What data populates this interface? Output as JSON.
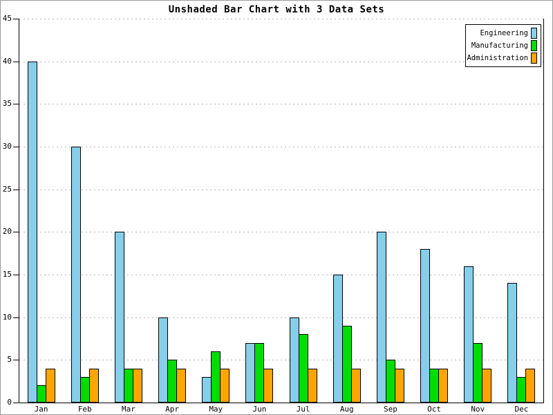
{
  "window": {
    "background": "#ffffff",
    "frame_border_color": "#9a9a9a"
  },
  "chart_data": {
    "type": "bar",
    "title": "Unshaded Bar Chart with 3 Data Sets",
    "categories": [
      "Jan",
      "Feb",
      "Mar",
      "Apr",
      "May",
      "Jun",
      "Jul",
      "Aug",
      "Sep",
      "Oct",
      "Nov",
      "Dec"
    ],
    "series": [
      {
        "name": "Engineering",
        "color": "#87CEEB",
        "values": [
          40,
          30,
          20,
          10,
          3,
          7,
          10,
          15,
          20,
          18,
          16,
          14
        ]
      },
      {
        "name": "Manufacturing",
        "color": "#00DD00",
        "values": [
          2,
          3,
          4,
          5,
          6,
          7,
          8,
          9,
          5,
          4,
          7,
          3
        ]
      },
      {
        "name": "Administration",
        "color": "#FFA500",
        "values": [
          4,
          4,
          4,
          4,
          4,
          4,
          4,
          4,
          4,
          4,
          4,
          4
        ]
      }
    ],
    "xlabel": "",
    "ylabel": "",
    "ylim": [
      0,
      45
    ],
    "yticks": [
      0,
      5,
      10,
      15,
      20,
      25,
      30,
      35,
      40,
      45
    ],
    "grid": {
      "horizontal": true,
      "style": "dotted",
      "color": "#b4b4b4"
    },
    "axis_color": "#000000",
    "bar_border_color": "#000000",
    "legend_position": "top-right"
  }
}
